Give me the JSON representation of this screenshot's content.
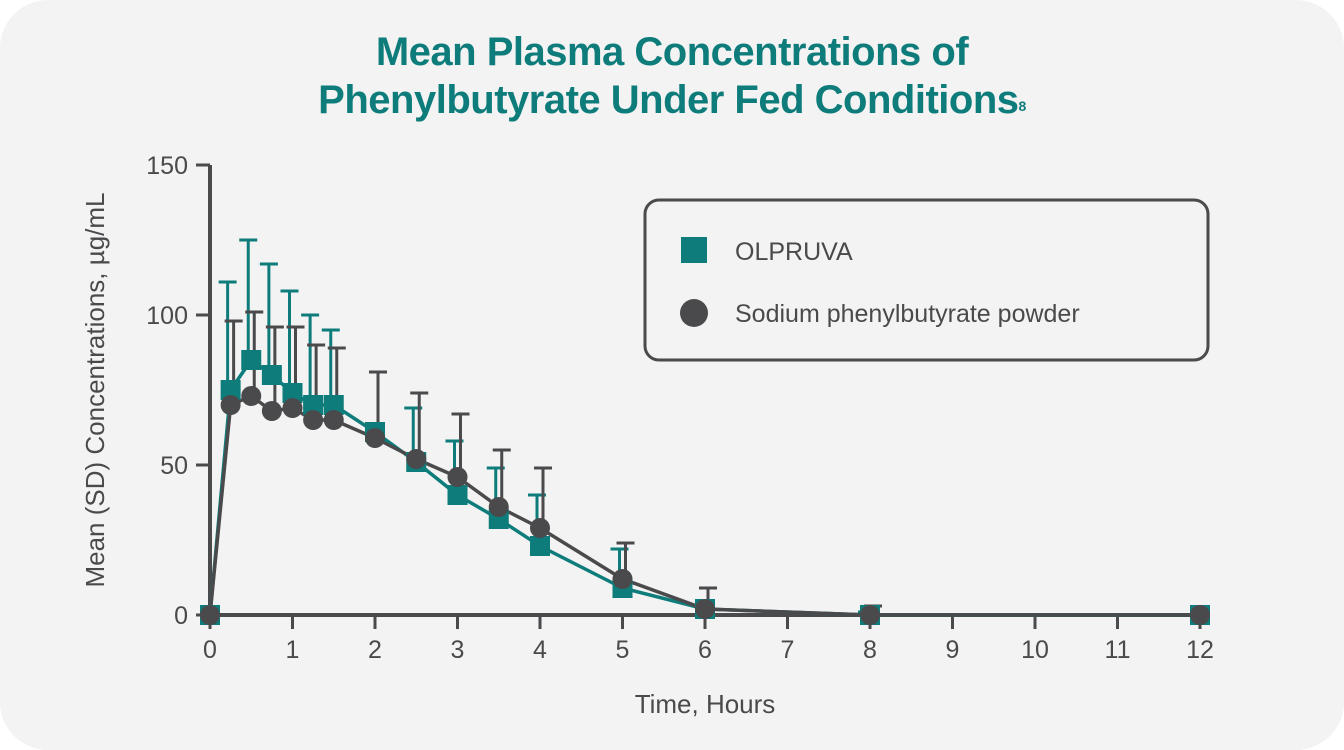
{
  "chart_data": {
    "type": "line",
    "title": "Mean Plasma Concentrations of Phenylbutyrate Under Fed Conditions",
    "title_line1": "Mean Plasma Concentrations of",
    "title_line2": "Phenylbutyrate Under Fed Conditions",
    "title_superscript": "8",
    "xlabel": "Time, Hours",
    "ylabel": "Mean (SD) Concentrations, µg/mL",
    "xlim": [
      0,
      12
    ],
    "ylim": [
      0,
      150
    ],
    "xticks": [
      0,
      1,
      2,
      3,
      4,
      5,
      6,
      7,
      8,
      9,
      10,
      11,
      12
    ],
    "yticks": [
      0,
      50,
      100,
      150
    ],
    "grid": false,
    "legend_placement": "top-right",
    "x": [
      0,
      0.25,
      0.5,
      0.75,
      1,
      1.25,
      1.5,
      2,
      2.5,
      3,
      3.5,
      4,
      5,
      6,
      8,
      12
    ],
    "series": [
      {
        "name": "OLPRUVA",
        "marker": "square",
        "color": "#0e7c7b",
        "values": [
          0,
          75,
          85,
          80,
          74,
          70,
          70,
          61,
          51,
          40,
          32,
          23,
          9,
          2,
          0,
          0
        ],
        "sd_upper": [
          null,
          111,
          125,
          117,
          108,
          100,
          95,
          null,
          69,
          58,
          49,
          40,
          22,
          3,
          1,
          null
        ]
      },
      {
        "name": "Sodium phenylbutyrate powder",
        "marker": "circle",
        "color": "#4a4a4c",
        "values": [
          0,
          70,
          73,
          68,
          69,
          65,
          65,
          59,
          52,
          46,
          36,
          29,
          12,
          2,
          0,
          0
        ],
        "sd_upper": [
          null,
          98,
          101,
          96,
          96,
          90,
          89,
          81,
          74,
          67,
          55,
          49,
          24,
          9,
          3,
          null
        ]
      }
    ]
  }
}
